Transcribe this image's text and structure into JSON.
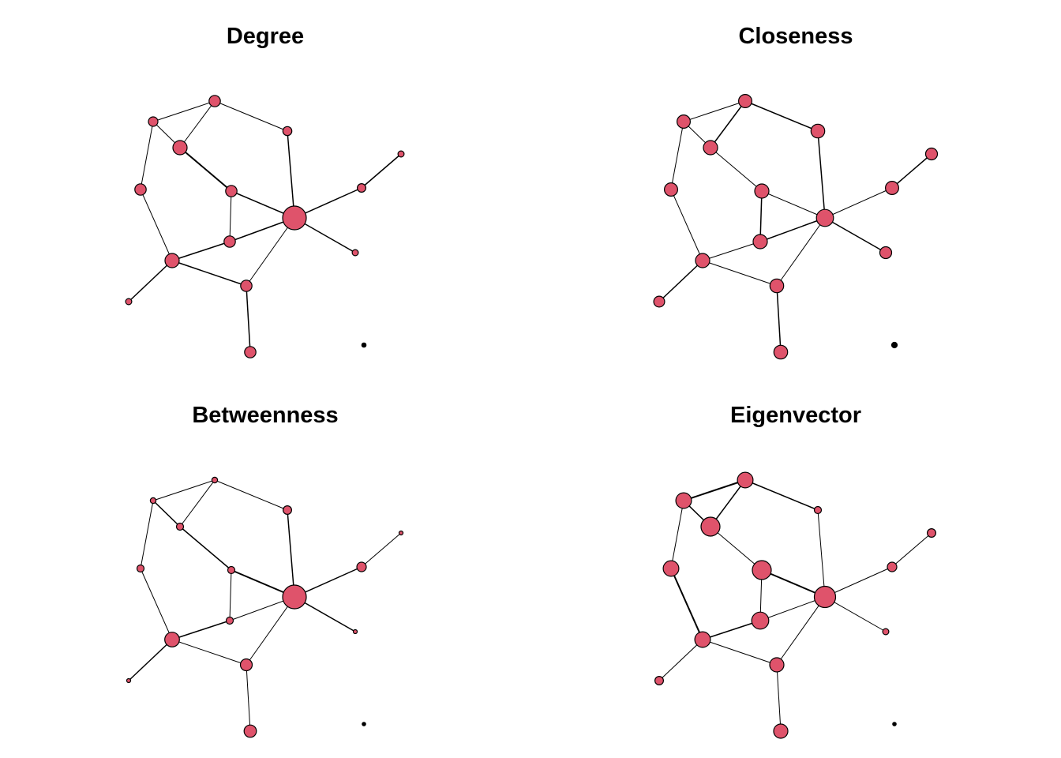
{
  "colors": {
    "node_fill": "#DF536B",
    "node_stroke": "#000000",
    "edge": "#000000"
  },
  "edges": [
    [
      0,
      1
    ],
    [
      0,
      2
    ],
    [
      0,
      3
    ],
    [
      1,
      2
    ],
    [
      1,
      4
    ],
    [
      2,
      5
    ],
    [
      3,
      6
    ],
    [
      4,
      7
    ],
    [
      5,
      7
    ],
    [
      5,
      8
    ],
    [
      6,
      8
    ],
    [
      6,
      9
    ],
    [
      7,
      9
    ],
    [
      7,
      10
    ],
    [
      7,
      11
    ],
    [
      7,
      12
    ],
    [
      8,
      13
    ],
    [
      9,
      13
    ],
    [
      13,
      14
    ],
    [
      10,
      15
    ]
  ],
  "panels": [
    {
      "title": "Degree",
      "node_sizes": [
        0.4,
        0.48,
        0.6,
        0.48,
        0.38,
        0.48,
        0.6,
        1.0,
        0.48,
        0.48,
        0.36,
        0.26,
        0.26,
        0.48,
        0.26,
        0.26,
        0.2
      ],
      "edge_widths": [
        1.0,
        1.0,
        1.0,
        1.0,
        1.0,
        2.0,
        1.0,
        1.5,
        1.5,
        1.0,
        1.5,
        1.5,
        1.0,
        1.5,
        1.5,
        1.5,
        1.5,
        1.5,
        1.5,
        1.5
      ]
    },
    {
      "title": "Closeness",
      "node_sizes": [
        0.56,
        0.56,
        0.6,
        0.56,
        0.58,
        0.6,
        0.6,
        0.72,
        0.6,
        0.58,
        0.56,
        0.5,
        0.46,
        0.58,
        0.5,
        0.46,
        0.26
      ],
      "edge_widths": [
        1.0,
        1.0,
        1.0,
        1.5,
        1.5,
        1.0,
        1.0,
        1.5,
        1.0,
        1.5,
        1.0,
        1.0,
        1.0,
        1.0,
        1.5,
        1.5,
        1.5,
        1.5,
        1.5,
        1.0
      ]
    },
    {
      "title": "Betweenness",
      "node_sizes": [
        0.24,
        0.24,
        0.3,
        0.3,
        0.36,
        0.3,
        0.62,
        1.0,
        0.3,
        0.5,
        0.4,
        0.16,
        0.16,
        0.52,
        0.16,
        0.16,
        0.14
      ],
      "edge_widths": [
        1.0,
        1.5,
        1.0,
        1.0,
        1.0,
        1.5,
        1.0,
        1.5,
        2.0,
        1.0,
        1.5,
        1.0,
        1.0,
        1.5,
        1.5,
        1.0,
        1.5,
        1.0,
        1.0,
        1.0
      ]
    },
    {
      "title": "Eigenvector",
      "node_sizes": [
        0.66,
        0.66,
        0.8,
        0.66,
        0.3,
        0.8,
        0.66,
        0.9,
        0.72,
        0.6,
        0.4,
        0.26,
        0.36,
        0.6,
        0.36,
        0.26,
        0.16
      ],
      "edge_widths": [
        2.0,
        1.5,
        1.0,
        1.5,
        1.5,
        1.0,
        2.0,
        1.0,
        2.0,
        1.0,
        1.5,
        1.0,
        1.0,
        1.0,
        1.0,
        1.0,
        1.0,
        1.0,
        1.0,
        1.0
      ]
    }
  ]
}
